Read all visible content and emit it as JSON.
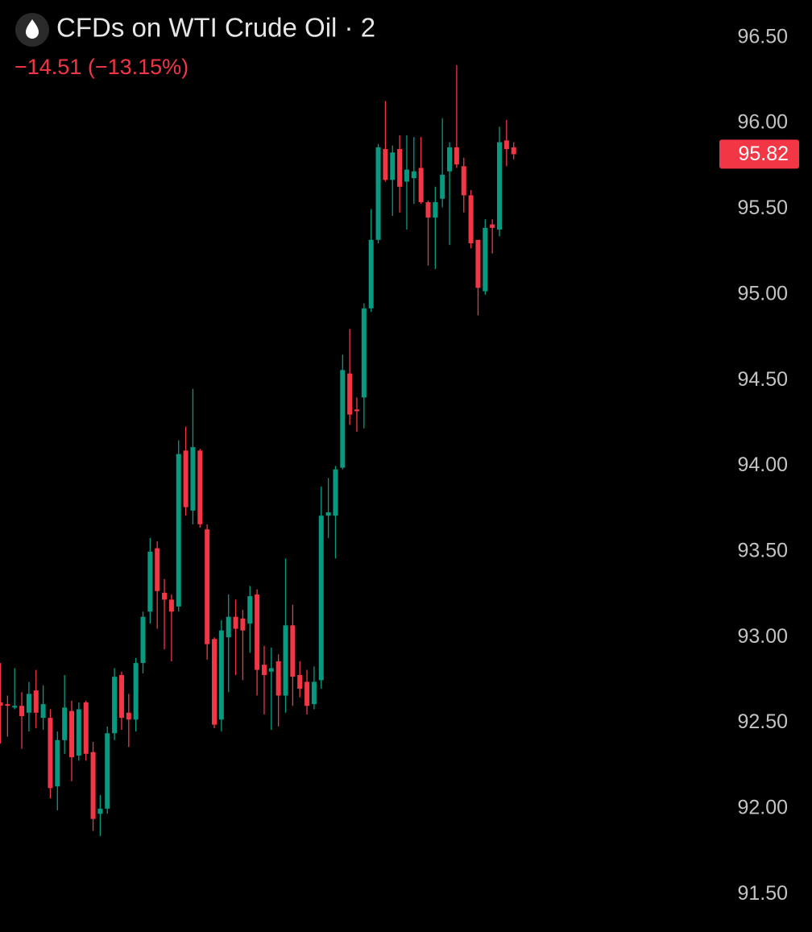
{
  "chart_data": {
    "type": "candlestick",
    "title": "CFDs on WTI Crude Oil · 2",
    "subtitle": "−14.51 (−13.15%)",
    "up_color": "#089981",
    "down_color": "#f23645",
    "last_price": 95.82,
    "ylim": [
      91.28,
      96.72
    ],
    "yticks": [
      {
        "value": 91.5,
        "label": "91.50"
      },
      {
        "value": 92,
        "label": "92.00"
      },
      {
        "value": 92.5,
        "label": "92.50"
      },
      {
        "value": 93,
        "label": "93.00"
      },
      {
        "value": 93.5,
        "label": "93.50"
      },
      {
        "value": 94,
        "label": "94.00"
      },
      {
        "value": 94.5,
        "label": "94.50"
      },
      {
        "value": 95,
        "label": "95.00"
      },
      {
        "value": 95.5,
        "label": "95.50"
      },
      {
        "value": 96,
        "label": "96.00"
      },
      {
        "value": 96.5,
        "label": "96.50"
      }
    ],
    "open": [
      92.62,
      92.61,
      92.59,
      92.6,
      92.56,
      92.69,
      92.53,
      92.53,
      92.13,
      92.4,
      92.57,
      92.31,
      92.62,
      92.33,
      91.97,
      92.0,
      92.44,
      92.78,
      92.56,
      92.52,
      92.85,
      93.15,
      93.52,
      93.26,
      93.22,
      93.18,
      94.09,
      93.74,
      94.09,
      93.63,
      92.99,
      92.52,
      93.0,
      93.12,
      93.11,
      93.08,
      93.25,
      92.84,
      92.8,
      92.86,
      92.66,
      93.07,
      92.78,
      92.74,
      92.61,
      92.75,
      93.71,
      93.71,
      93.99,
      94.54,
      94.33,
      94.4,
      94.92,
      95.32,
      95.85,
      95.67,
      95.85,
      95.66,
      95.68,
      95.74,
      95.54,
      95.45,
      95.56,
      95.72,
      95.86,
      95.75,
      95.58,
      95.32,
      95.02,
      95.41,
      95.38,
      95.9,
      95.86
    ],
    "high": [
      92.85,
      92.66,
      92.82,
      92.68,
      92.74,
      92.81,
      92.72,
      92.58,
      92.45,
      92.78,
      92.63,
      92.62,
      92.63,
      92.39,
      92.08,
      92.48,
      92.82,
      92.8,
      92.67,
      92.88,
      93.15,
      93.58,
      93.56,
      93.34,
      93.25,
      94.15,
      94.23,
      94.45,
      94.1,
      93.66,
      93.0,
      93.1,
      93.25,
      93.22,
      93.16,
      93.3,
      93.28,
      92.95,
      92.94,
      92.9,
      93.46,
      93.19,
      92.86,
      92.81,
      92.83,
      93.88,
      93.93,
      94.0,
      94.65,
      94.8,
      94.4,
      94.95,
      95.5,
      95.88,
      96.13,
      95.87,
      95.93,
      95.93,
      95.92,
      95.92,
      95.55,
      95.63,
      96.03,
      95.89,
      96.34,
      95.8,
      95.61,
      95.32,
      95.44,
      95.44,
      95.98,
      96.02,
      95.89
    ],
    "low": [
      92.38,
      92.42,
      92.58,
      92.35,
      92.45,
      92.47,
      92.46,
      92.06,
      91.99,
      92.32,
      92.16,
      92.28,
      92.28,
      91.87,
      91.84,
      91.97,
      92.4,
      92.46,
      92.36,
      92.45,
      92.79,
      93.08,
      93.05,
      92.93,
      92.86,
      93.15,
      93.71,
      93.66,
      93.64,
      92.87,
      92.47,
      92.45,
      92.68,
      92.78,
      92.75,
      92.91,
      92.66,
      92.55,
      92.46,
      92.48,
      92.56,
      92.6,
      92.65,
      92.55,
      92.58,
      92.7,
      93.58,
      93.46,
      93.98,
      94.24,
      94.2,
      94.22,
      94.9,
      95.3,
      95.66,
      95.46,
      95.48,
      95.38,
      95.53,
      95.53,
      95.17,
      95.15,
      95.51,
      95.29,
      95.74,
      95.48,
      95.27,
      94.88,
      95.0,
      95.24,
      95.34,
      95.75,
      95.79
    ],
    "close": [
      92.6,
      92.6,
      92.6,
      92.54,
      92.67,
      92.56,
      92.61,
      92.12,
      92.4,
      92.59,
      92.3,
      92.58,
      92.32,
      91.94,
      92.0,
      92.44,
      92.77,
      92.53,
      92.52,
      92.85,
      93.12,
      93.5,
      93.27,
      93.22,
      93.15,
      94.07,
      93.76,
      94.11,
      93.66,
      92.96,
      92.49,
      93.04,
      93.12,
      93.05,
      93.04,
      93.24,
      92.81,
      92.78,
      92.82,
      92.66,
      93.07,
      92.77,
      92.7,
      92.6,
      92.74,
      93.71,
      93.73,
      93.98,
      94.56,
      94.3,
      94.32,
      94.92,
      95.32,
      95.86,
      95.67,
      95.83,
      95.63,
      95.73,
      95.72,
      95.54,
      95.45,
      95.54,
      95.7,
      95.86,
      95.76,
      95.58,
      95.3,
      95.04,
      95.39,
      95.39,
      95.89,
      95.85,
      95.82
    ]
  }
}
